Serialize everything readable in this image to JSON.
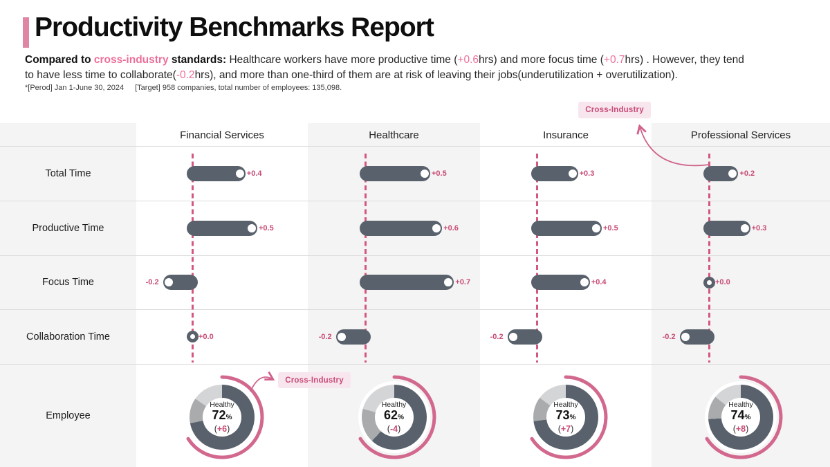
{
  "report": {
    "title": "Productivity Benchmarks Report",
    "subtitle_parts": [
      {
        "t": "Compared to ",
        "s": "b"
      },
      {
        "t": "cross-industry",
        "s": "bp"
      },
      {
        "t": " standards:",
        "s": "b"
      },
      {
        "t": " Healthcare workers have more productive time (",
        "s": "r"
      },
      {
        "t": "+0.6",
        "s": "p"
      },
      {
        "t": "hrs) and more focus time (",
        "s": "r"
      },
      {
        "t": "+0.7",
        "s": "p"
      },
      {
        "t": "hrs) . However, they tend",
        "s": "r"
      },
      {
        "br": true
      },
      {
        "t": "to have less time to collaborate(",
        "s": "r"
      },
      {
        "t": "-0.2",
        "s": "p"
      },
      {
        "t": "hrs), and more than one-third of them are at risk of leaving their jobs(underutilization + overutilization).",
        "s": "r"
      }
    ],
    "footnote": {
      "period": "*[Perod] Jan 1-June 30, 2024",
      "target": "[Target] 958 companies, total number of employees: 135,098."
    }
  },
  "chart_data": {
    "type": "bar",
    "subtype": "benchmark-dumbbell-matrix",
    "unit": "hrs vs cross-industry baseline",
    "industries": [
      "Financial Services",
      "Healthcare",
      "Insurance",
      "Professional Services"
    ],
    "metrics": [
      "Total Time",
      "Productive Time",
      "Focus Time",
      "Collaboration Time"
    ],
    "series": [
      {
        "industry": "Financial Services",
        "values": [
          0.4,
          0.5,
          -0.2,
          0.0
        ],
        "labels": [
          "+0.4",
          "+0.5",
          "-0.2",
          "+0.0"
        ]
      },
      {
        "industry": "Healthcare",
        "values": [
          0.5,
          0.6,
          0.7,
          -0.2
        ],
        "labels": [
          "+0.5",
          "+0.6",
          "+0.7",
          "-0.2"
        ]
      },
      {
        "industry": "Insurance",
        "values": [
          0.3,
          0.5,
          0.4,
          -0.2
        ],
        "labels": [
          "+0.3",
          "+0.5",
          "+0.4",
          "-0.2"
        ]
      },
      {
        "industry": "Professional Services",
        "values": [
          0.2,
          0.3,
          0.0,
          -0.2
        ],
        "labels": [
          "+0.2",
          "+0.3",
          "+0.0",
          "-0.2"
        ]
      }
    ],
    "employee_row": {
      "label": "Employee",
      "healthy_label": "Healthy",
      "pct_unit": "%",
      "donuts": [
        {
          "industry": "Financial Services",
          "pct": 72,
          "diff": "+6"
        },
        {
          "industry": "Healthcare",
          "pct": 62,
          "diff": "-4"
        },
        {
          "industry": "Insurance",
          "pct": 73,
          "diff": "+7"
        },
        {
          "industry": "Professional Services",
          "pct": 74,
          "diff": "+8"
        }
      ]
    },
    "cross_industry": {
      "label": "Cross-Industry",
      "healthy_pct": 66
    }
  },
  "colors": {
    "accent_pink": "#c84b76",
    "subtitle_pink": "#ec6f9a",
    "dash_pink": "#d4577f",
    "arc_pink": "#d2688e",
    "title_bar_pink": "#de86a4",
    "label_bg": "#f8e6ee",
    "slate": "#59626c",
    "seg_medium": "#a9abad",
    "seg_light": "#d4d5d7",
    "band_gray": "#f4f4f4",
    "divider": "#dcdcdc"
  }
}
